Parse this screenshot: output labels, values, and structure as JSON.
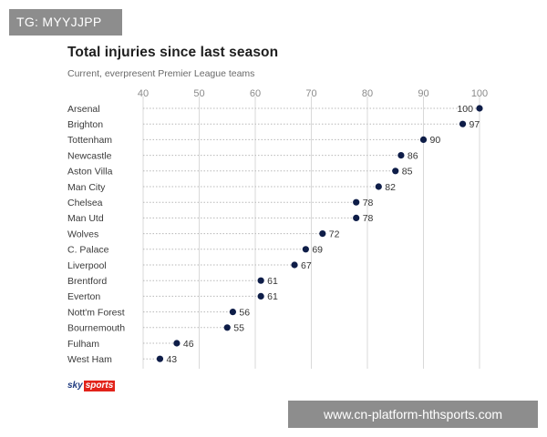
{
  "watermark_top": "TG: MYYJJPP",
  "watermark_bottom": "www.cn-platform-hthsports.com",
  "brand": {
    "sky": "sky",
    "sports": "sports"
  },
  "colors": {
    "dot": "#0e1d48",
    "grid": "#d9d9d9",
    "label": "#3a3a3a",
    "tick": "#8a8a8a"
  },
  "chart_data": {
    "type": "scatter",
    "title": "Total injuries since last season",
    "subtitle": "Current, everpresent Premier League teams",
    "xlabel": "",
    "ylabel": "",
    "xlim": [
      40,
      100
    ],
    "xticks": [
      40,
      50,
      60,
      70,
      80,
      90,
      100
    ],
    "grid": true,
    "categories": [
      "Arsenal",
      "Brighton",
      "Tottenham",
      "Newcastle",
      "Aston Villa",
      "Man City",
      "Chelsea",
      "Man Utd",
      "Wolves",
      "C. Palace",
      "Liverpool",
      "Brentford",
      "Everton",
      "Nott'm Forest",
      "Bournemouth",
      "Fulham",
      "West Ham"
    ],
    "values": [
      100,
      97,
      90,
      86,
      85,
      82,
      78,
      78,
      72,
      69,
      67,
      61,
      61,
      56,
      55,
      46,
      43
    ]
  }
}
